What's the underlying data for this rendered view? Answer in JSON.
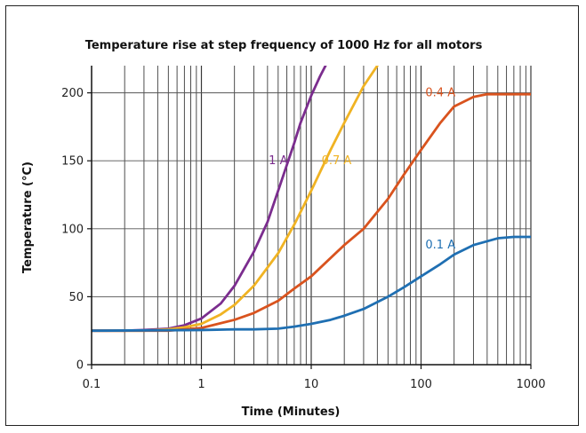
{
  "chart_data": {
    "type": "line",
    "title": "Temperature rise at step frequency of 1000 Hz for all motors",
    "xlabel": "Time (Minutes)",
    "ylabel": "Temperature (°C)",
    "xscale": "log",
    "xlim": [
      0.1,
      1000
    ],
    "ylim": [
      0,
      220
    ],
    "xticks": [
      {
        "value": 0.1,
        "label": "0.1"
      },
      {
        "value": 1,
        "label": "1"
      },
      {
        "value": 10,
        "label": "10"
      },
      {
        "value": 100,
        "label": "100"
      },
      {
        "value": 1000,
        "label": "1000"
      }
    ],
    "yticks": [
      {
        "value": 0,
        "label": "0"
      },
      {
        "value": 50,
        "label": "50"
      },
      {
        "value": 100,
        "label": "100"
      },
      {
        "value": 150,
        "label": "150"
      },
      {
        "value": 200,
        "label": "200"
      }
    ],
    "grid": true,
    "legend": "inline labels",
    "series": [
      {
        "name": "1 A",
        "color": "#7B2D8E",
        "label_at": [
          5,
          150
        ],
        "x": [
          0.1,
          0.2,
          0.3,
          0.5,
          0.7,
          1,
          1.5,
          2,
          3,
          4,
          5,
          6,
          7,
          8,
          10,
          12,
          13.5
        ],
        "y": [
          25,
          25,
          25.5,
          26.5,
          29,
          34,
          45,
          58,
          83,
          105,
          128,
          147,
          163,
          178,
          198,
          212,
          220
        ]
      },
      {
        "name": "0.7 A",
        "color": "#F0B323",
        "label_at": [
          17,
          150
        ],
        "x": [
          0.1,
          0.3,
          0.5,
          0.7,
          1,
          1.5,
          2,
          3,
          5,
          7,
          10,
          15,
          20,
          30,
          40
        ],
        "y": [
          25,
          25,
          26,
          27.5,
          30,
          37,
          44,
          58,
          82,
          103,
          128,
          158,
          178,
          205,
          220
        ]
      },
      {
        "name": "0.4 A",
        "color": "#D9531E",
        "label_at": [
          150,
          200
        ],
        "x": [
          0.1,
          0.5,
          1,
          2,
          3,
          5,
          7,
          10,
          20,
          30,
          50,
          70,
          100,
          150,
          200,
          300,
          400,
          500,
          700,
          1000
        ],
        "y": [
          25,
          25,
          27,
          33,
          38,
          47,
          56,
          65,
          88,
          100,
          122,
          140,
          158,
          178,
          190,
          197,
          199,
          199,
          199,
          199
        ]
      },
      {
        "name": "0.1 A",
        "color": "#1F6FB2",
        "label_at": [
          150,
          88
        ],
        "x": [
          0.1,
          1,
          2,
          3,
          5,
          7,
          10,
          15,
          20,
          30,
          50,
          70,
          100,
          150,
          200,
          300,
          500,
          700,
          1000
        ],
        "y": [
          25,
          25.5,
          26,
          26,
          26.5,
          28,
          30,
          33,
          36,
          41,
          50,
          57,
          65,
          74,
          81,
          88,
          93,
          94,
          94
        ]
      }
    ]
  }
}
